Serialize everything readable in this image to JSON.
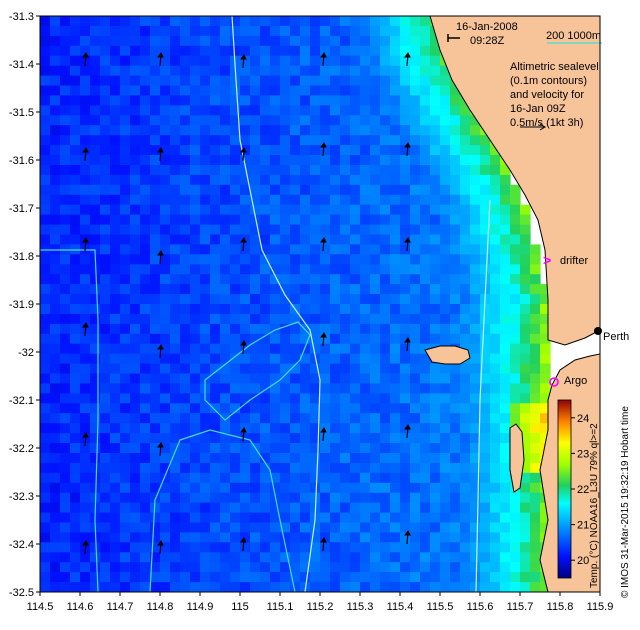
{
  "map": {
    "header_date": "16-Jan-2008",
    "header_time": "09:28Z",
    "scale_text": "200  1000m",
    "legend_lines": [
      "Altimetric sealevel",
      "(0.1m contours)",
      "and velocity for",
      "16-Jan 09Z",
      "0.5m/s (1kt 3h)"
    ],
    "label_drifter": "drifter",
    "label_argo": "Argo",
    "label_perth": "Perth",
    "colorbar_title": "Temp. (°C) NOAA16_L3U 79% ql>=2",
    "side_credit": "© IMOS 31-Mar-2015 19:32:19 Hobart time"
  },
  "chart_data": {
    "type": "heatmap",
    "title": "",
    "xlabel": "",
    "ylabel": "",
    "xlim": [
      114.5,
      115.9
    ],
    "ylim": [
      -32.5,
      -31.3
    ],
    "x_ticks": [
      "114.5",
      "114.6",
      "114.7",
      "114.8",
      "114.9",
      "115",
      "115.1",
      "115.2",
      "115.3",
      "115.4",
      "115.5",
      "115.6",
      "115.7",
      "115.8",
      "115.9"
    ],
    "y_ticks": [
      "-31.3",
      "-31.4",
      "-31.5",
      "-31.6",
      "-31.7",
      "-31.8",
      "-31.9",
      "-32",
      "-32.1",
      "-32.2",
      "-32.3",
      "-32.4",
      "-32.5"
    ],
    "colorbar": {
      "min": 19.5,
      "max": 24.5,
      "ticks": [
        "20",
        "21",
        "22",
        "23",
        "24"
      ]
    },
    "colors": {
      "land": "#f7c49a",
      "contour_200m": "#c8f0f0",
      "contour_1000m": "#40e0d0",
      "marker": "#ff00ff"
    },
    "markers": [
      {
        "name": "drifter",
        "lon": 115.73,
        "lat": -31.82
      },
      {
        "name": "Argo",
        "lon": 115.73,
        "lat": -32.08
      },
      {
        "name": "Perth",
        "lon": 115.86,
        "lat": -31.96
      }
    ]
  }
}
